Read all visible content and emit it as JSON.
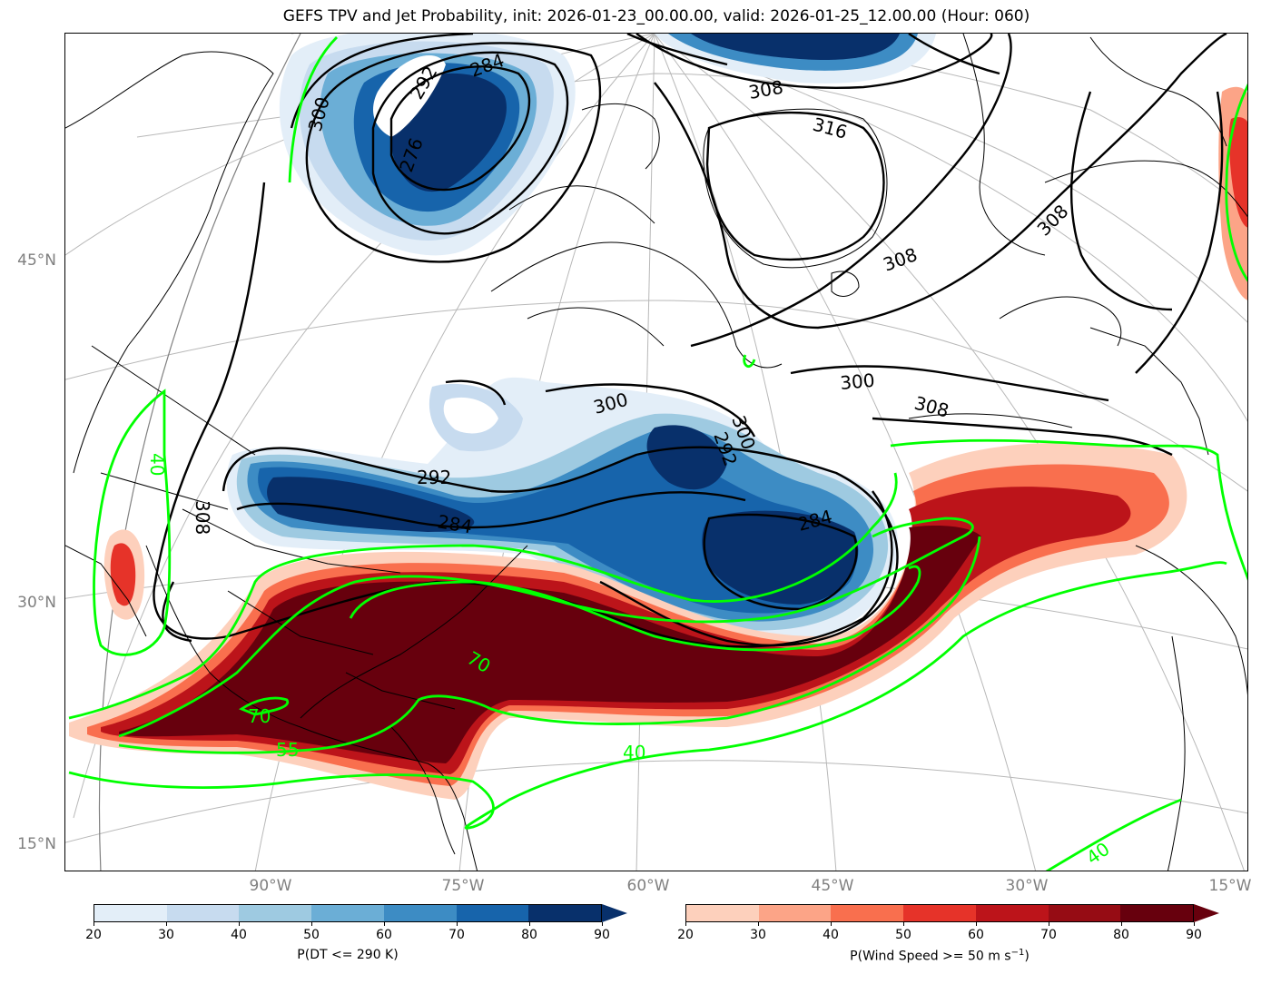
{
  "title": "GEFS TPV and Jet Probability, init: 2026-01-23_00.00.00, valid: 2026-01-25_12.00.00 (Hour: 060)",
  "lat_labels": [
    "45°N",
    "30°N",
    "15°N"
  ],
  "lon_labels": [
    "90°W",
    "75°W",
    "60°W",
    "45°W",
    "30°W",
    "15°W"
  ],
  "colors": {
    "blue_scale": [
      "#e3eef8",
      "#c7dbef",
      "#9ecae1",
      "#6baed6",
      "#3d8cc4",
      "#1764ab",
      "#08306b"
    ],
    "red_scale": [
      "#fff0ea",
      "#fdd0bc",
      "#fca487",
      "#f96f4e",
      "#e63329",
      "#bc141a",
      "#960c14",
      "#67000d"
    ],
    "jet_contour": "#00ff00",
    "theta_contour": "#000000",
    "graticule": "#b0b0b0"
  },
  "theta_contour_labels": [
    "284",
    "276",
    "292",
    "300",
    "308",
    "316",
    "292",
    "284",
    "292",
    "300",
    "284",
    "308",
    "300",
    "308",
    "308",
    "308",
    "300"
  ],
  "jet_contour_labels": [
    "70",
    "70",
    "55",
    "40",
    "40",
    "40"
  ],
  "colorbar_dt": {
    "ticks": [
      "20",
      "30",
      "40",
      "50",
      "60",
      "70",
      "80",
      "90"
    ],
    "label": "P(DT <= 290 K)"
  },
  "colorbar_wind": {
    "ticks": [
      "20",
      "30",
      "40",
      "50",
      "60",
      "70",
      "80",
      "90"
    ],
    "label_main": "P(Wind Speed >= 50 m s",
    "label_sup": "−1",
    "label_end": ")"
  }
}
